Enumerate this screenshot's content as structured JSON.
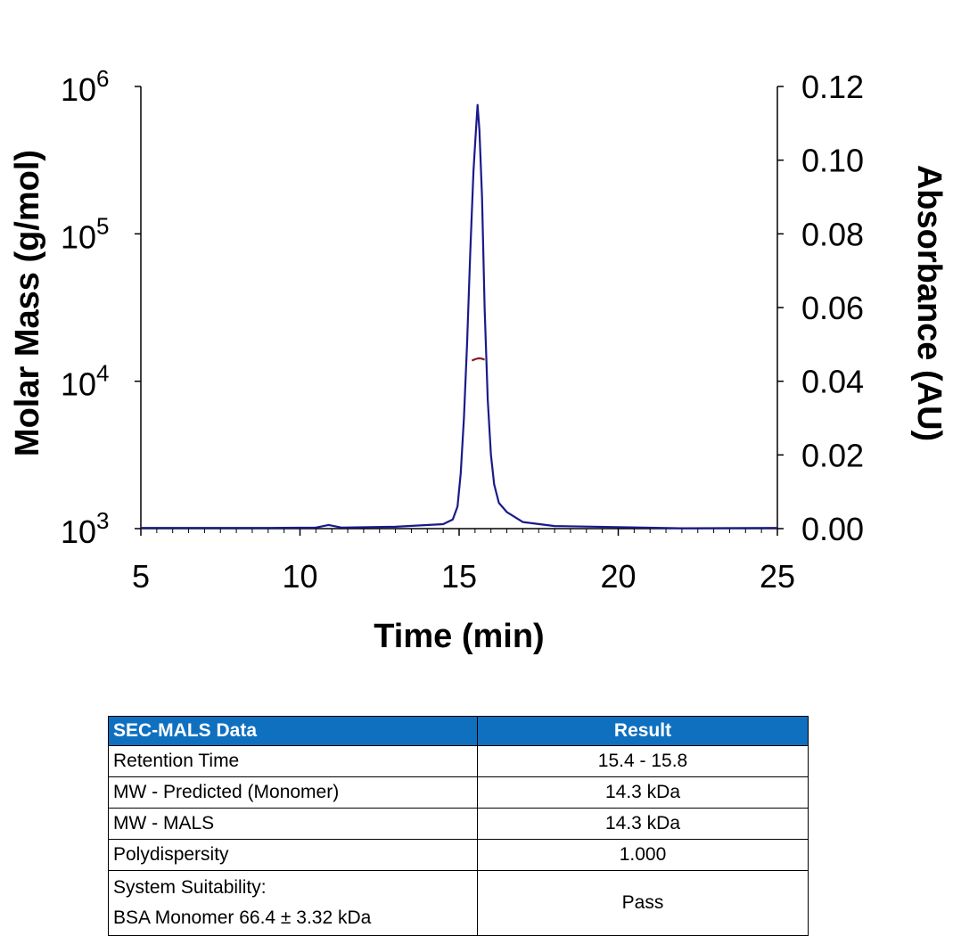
{
  "chart_data": {
    "type": "line",
    "xlabel": "Time (min)",
    "xlim": [
      5,
      25
    ],
    "xticks": [
      5,
      10,
      15,
      20,
      25
    ],
    "y_left": {
      "label": "Molar Mass (g/mol)",
      "scale": "log",
      "lim": [
        1000,
        1000000
      ],
      "ticks": [
        {
          "base": "10",
          "exp": "3"
        },
        {
          "base": "10",
          "exp": "4"
        },
        {
          "base": "10",
          "exp": "5"
        },
        {
          "base": "10",
          "exp": "6"
        }
      ]
    },
    "y_right": {
      "label": "Absorbance (AU)",
      "lim": [
        0,
        0.12
      ],
      "ticks": [
        "0.00",
        "0.02",
        "0.04",
        "0.06",
        "0.08",
        "0.10",
        "0.12"
      ]
    },
    "series": [
      {
        "name": "Absorbance",
        "axis": "right",
        "color": "#1a1a8c",
        "x": [
          5,
          7,
          9,
          10.5,
          10.9,
          11.3,
          13,
          14.5,
          14.8,
          14.95,
          15.05,
          15.15,
          15.25,
          15.35,
          15.45,
          15.52,
          15.58,
          15.64,
          15.72,
          15.8,
          15.9,
          16.0,
          16.1,
          16.25,
          16.5,
          17,
          18,
          20,
          22,
          25
        ],
        "y": [
          0.0002,
          0.0002,
          0.0002,
          0.0003,
          0.001,
          0.0003,
          0.0005,
          0.0012,
          0.0025,
          0.006,
          0.015,
          0.03,
          0.05,
          0.075,
          0.097,
          0.107,
          0.115,
          0.108,
          0.09,
          0.06,
          0.035,
          0.02,
          0.012,
          0.007,
          0.0045,
          0.0018,
          0.0007,
          0.0004,
          0.0001,
          0.0002
        ]
      },
      {
        "name": "Molar Mass",
        "axis": "left",
        "color": "#8b1a1a",
        "x": [
          15.4,
          15.5,
          15.6,
          15.7,
          15.8
        ],
        "y": [
          13800,
          14100,
          14300,
          14250,
          14000
        ]
      }
    ]
  },
  "table": {
    "headers": [
      "SEC-MALS Data",
      "Result"
    ],
    "rows": [
      {
        "label": "Retention Time",
        "value": "15.4 - 15.8"
      },
      {
        "label": "MW - Predicted (Monomer)",
        "value": "14.3 kDa"
      },
      {
        "label": "MW - MALS",
        "value": "14.3 kDa"
      },
      {
        "label": "Polydispersity",
        "value": "1.000"
      }
    ],
    "suitability": {
      "line1": "System Suitability:",
      "line2": "BSA Monomer 66.4 ± 3.32 kDa",
      "value": "Pass"
    }
  },
  "colors": {
    "table_header": "#1070c0",
    "absorbance_line": "#1a1a8c",
    "mass_line": "#8b1a1a"
  }
}
